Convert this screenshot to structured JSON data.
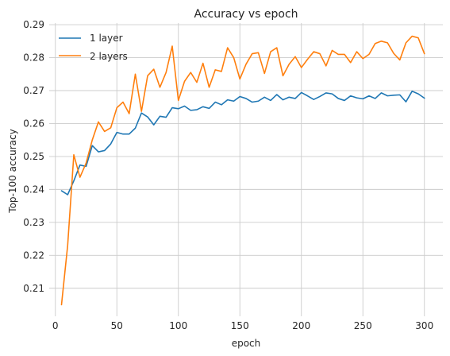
{
  "chart_data": {
    "type": "line",
    "title": "Accuracy vs epoch",
    "xlabel": "epoch",
    "ylabel": "Top-100 accuracy",
    "xlim": [
      -5,
      315
    ],
    "ylim": [
      0.2015,
      0.2905
    ],
    "xticks": [
      0,
      50,
      100,
      150,
      200,
      250,
      300
    ],
    "yticks": [
      0.21,
      0.22,
      0.23,
      0.24,
      0.25,
      0.26,
      0.27,
      0.28,
      0.29
    ],
    "grid": true,
    "legend_position": "top-left",
    "x": [
      5,
      10,
      15,
      20,
      25,
      30,
      35,
      40,
      45,
      50,
      55,
      60,
      65,
      70,
      75,
      80,
      85,
      90,
      95,
      100,
      105,
      110,
      115,
      120,
      125,
      130,
      135,
      140,
      145,
      150,
      155,
      160,
      165,
      170,
      175,
      180,
      185,
      190,
      195,
      200,
      205,
      210,
      215,
      220,
      225,
      230,
      235,
      240,
      245,
      250,
      255,
      260,
      265,
      270,
      275,
      280,
      285,
      290,
      295,
      300
    ],
    "series": [
      {
        "name": "1 layer",
        "color": "#1f77b4",
        "values": [
          0.2396,
          0.2384,
          0.2426,
          0.2474,
          0.247,
          0.2533,
          0.2514,
          0.2518,
          0.2538,
          0.2573,
          0.2568,
          0.2568,
          0.2586,
          0.2632,
          0.262,
          0.2596,
          0.2622,
          0.2619,
          0.2648,
          0.2645,
          0.2653,
          0.264,
          0.2642,
          0.2651,
          0.2646,
          0.2665,
          0.2657,
          0.2672,
          0.2668,
          0.2682,
          0.2676,
          0.2665,
          0.2668,
          0.268,
          0.267,
          0.2688,
          0.2672,
          0.268,
          0.2676,
          0.2694,
          0.2684,
          0.2673,
          0.2682,
          0.2693,
          0.269,
          0.2676,
          0.267,
          0.2684,
          0.2678,
          0.2675,
          0.2684,
          0.2676,
          0.2693,
          0.2684,
          0.2686,
          0.2687,
          0.2666,
          0.2698,
          0.269,
          0.2677
        ]
      },
      {
        "name": "2 layers",
        "color": "#ff7f0e",
        "values": [
          0.205,
          0.223,
          0.2505,
          0.2437,
          0.248,
          0.255,
          0.2605,
          0.2576,
          0.2587,
          0.2648,
          0.2665,
          0.263,
          0.275,
          0.2637,
          0.2745,
          0.2765,
          0.271,
          0.2755,
          0.2835,
          0.267,
          0.2728,
          0.2755,
          0.2725,
          0.2783,
          0.271,
          0.2763,
          0.2758,
          0.283,
          0.28,
          0.2735,
          0.278,
          0.2812,
          0.2815,
          0.2752,
          0.2818,
          0.283,
          0.2745,
          0.278,
          0.2803,
          0.277,
          0.2795,
          0.2818,
          0.2812,
          0.2775,
          0.2822,
          0.281,
          0.281,
          0.2785,
          0.2818,
          0.2797,
          0.281,
          0.2843,
          0.285,
          0.2845,
          0.2813,
          0.2793,
          0.2845,
          0.2865,
          0.286,
          0.2812
        ]
      }
    ]
  }
}
